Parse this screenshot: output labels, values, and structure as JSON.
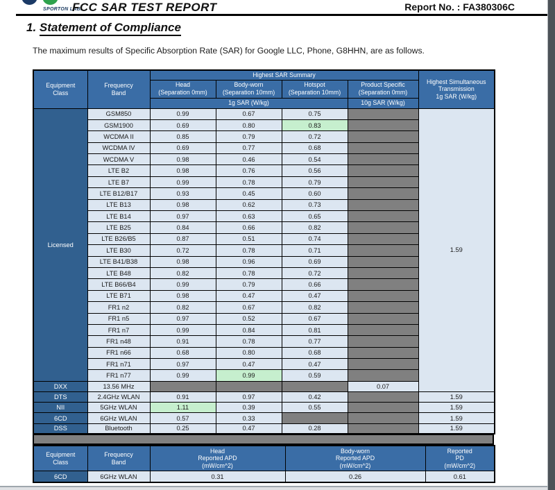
{
  "header": {
    "logo_text": "SPORTON LAB.",
    "title": "FCC SAR TEST REPORT",
    "report_no": "Report No. : FA380306C"
  },
  "section": {
    "number": "1.",
    "heading": "Statement of Compliance",
    "intro": "The maximum results of Specific Absorption Rate (SAR) for Google LLC, Phone, G8HHN, are as follows."
  },
  "colors": {
    "header_blue": "#3A6DA6",
    "label_blue": "#31608F",
    "light_cell": "#DCE6F1",
    "gray_cell": "#808080",
    "green_highlight": "#C6EFCE"
  },
  "sar_table": {
    "headers": {
      "equipment_class": "Equipment\nClass",
      "frequency_band": "Frequency\nBand",
      "summary": "Highest SAR Summary",
      "head": "Head\n(Separation 0mm)",
      "body": "Body-worn\n(Separation 10mm)",
      "hotspot": "Hotspot\n(Separation 10mm)",
      "product": "Product Specific\n(Separation 0mm)",
      "unit_1g": "1g SAR (W/kg)",
      "unit_10g": "10g SAR (W/kg)",
      "simultaneous": "Highest Simultaneous\nTransmission\n1g SAR (W/kg)"
    },
    "licensed": {
      "label": "Licensed",
      "simultaneous": "1.59",
      "rows": [
        {
          "band": "GSM850",
          "head": "0.99",
          "body": "0.67",
          "hotspot": "0.75"
        },
        {
          "band": "GSM1900",
          "head": "0.69",
          "body": "0.80",
          "hotspot": "0.83",
          "green": "hotspot"
        },
        {
          "band": "WCDMA II",
          "head": "0.85",
          "body": "0.79",
          "hotspot": "0.72"
        },
        {
          "band": "WCDMA IV",
          "head": "0.69",
          "body": "0.77",
          "hotspot": "0.68"
        },
        {
          "band": "WCDMA V",
          "head": "0.98",
          "body": "0.46",
          "hotspot": "0.54"
        },
        {
          "band": "LTE B2",
          "head": "0.98",
          "body": "0.76",
          "hotspot": "0.56"
        },
        {
          "band": "LTE B7",
          "head": "0.99",
          "body": "0.78",
          "hotspot": "0.79"
        },
        {
          "band": "LTE B12/B17",
          "head": "0.93",
          "body": "0.45",
          "hotspot": "0.60"
        },
        {
          "band": "LTE B13",
          "head": "0.98",
          "body": "0.62",
          "hotspot": "0.73"
        },
        {
          "band": "LTE B14",
          "head": "0.97",
          "body": "0.63",
          "hotspot": "0.65"
        },
        {
          "band": "LTE B25",
          "head": "0.84",
          "body": "0.66",
          "hotspot": "0.82"
        },
        {
          "band": "LTE B26/B5",
          "head": "0.87",
          "body": "0.51",
          "hotspot": "0.74"
        },
        {
          "band": "LTE B30",
          "head": "0.72",
          "body": "0.78",
          "hotspot": "0.71"
        },
        {
          "band": "LTE B41/B38",
          "head": "0.98",
          "body": "0.96",
          "hotspot": "0.69"
        },
        {
          "band": "LTE B48",
          "head": "0.82",
          "body": "0.78",
          "hotspot": "0.72"
        },
        {
          "band": "LTE B66/B4",
          "head": "0.99",
          "body": "0.79",
          "hotspot": "0.66"
        },
        {
          "band": "LTE B71",
          "head": "0.98",
          "body": "0.47",
          "hotspot": "0.47"
        },
        {
          "band": "FR1 n2",
          "head": "0.82",
          "body": "0.67",
          "hotspot": "0.82"
        },
        {
          "band": "FR1 n5",
          "head": "0.97",
          "body": "0.52",
          "hotspot": "0.67"
        },
        {
          "band": "FR1 n7",
          "head": "0.99",
          "body": "0.84",
          "hotspot": "0.81"
        },
        {
          "band": "FR1 n48",
          "head": "0.91",
          "body": "0.78",
          "hotspot": "0.77"
        },
        {
          "band": "FR1 n66",
          "head": "0.68",
          "body": "0.80",
          "hotspot": "0.68"
        },
        {
          "band": "FR1 n71",
          "head": "0.97",
          "body": "0.47",
          "hotspot": "0.47"
        },
        {
          "band": "FR1 n77",
          "head": "0.99",
          "body": "0.99",
          "hotspot": "0.59",
          "green": "body"
        }
      ]
    },
    "dxx": {
      "label": "DXX",
      "band": "13.56 MHz",
      "product": "0.07"
    },
    "unlicensed": [
      {
        "label": "DTS",
        "band": "2.4GHz WLAN",
        "head": "0.91",
        "body": "0.97",
        "hotspot": "0.42",
        "simultaneous": "1.59"
      },
      {
        "label": "NII",
        "band": "5GHz WLAN",
        "head": "1.11",
        "body": "0.39",
        "hotspot": "0.55",
        "green": "head",
        "simultaneous": "1.59"
      },
      {
        "label": "6CD",
        "band": "6GHz WLAN",
        "head": "0.57",
        "body": "0.33",
        "hotspot": null,
        "simultaneous": "1.59"
      },
      {
        "label": "DSS",
        "band": "Bluetooth",
        "head": "0.25",
        "body": "0.47",
        "hotspot": "0.28",
        "simultaneous": "1.59"
      }
    ]
  },
  "apd_table": {
    "headers": {
      "equipment_class": "Equipment\nClass",
      "frequency_band": "Frequency\nBand",
      "head": "Head\nReported APD\n(mW/cm^2)",
      "body": "Body-worn\nReported APD\n(mW/cm^2)",
      "pd": "Reported\nPD\n(mW/cm^2)"
    },
    "row": {
      "label": "6CD",
      "band": "6GHz WLAN",
      "head": "0.31",
      "body": "0.26",
      "pd": "0.61"
    }
  }
}
